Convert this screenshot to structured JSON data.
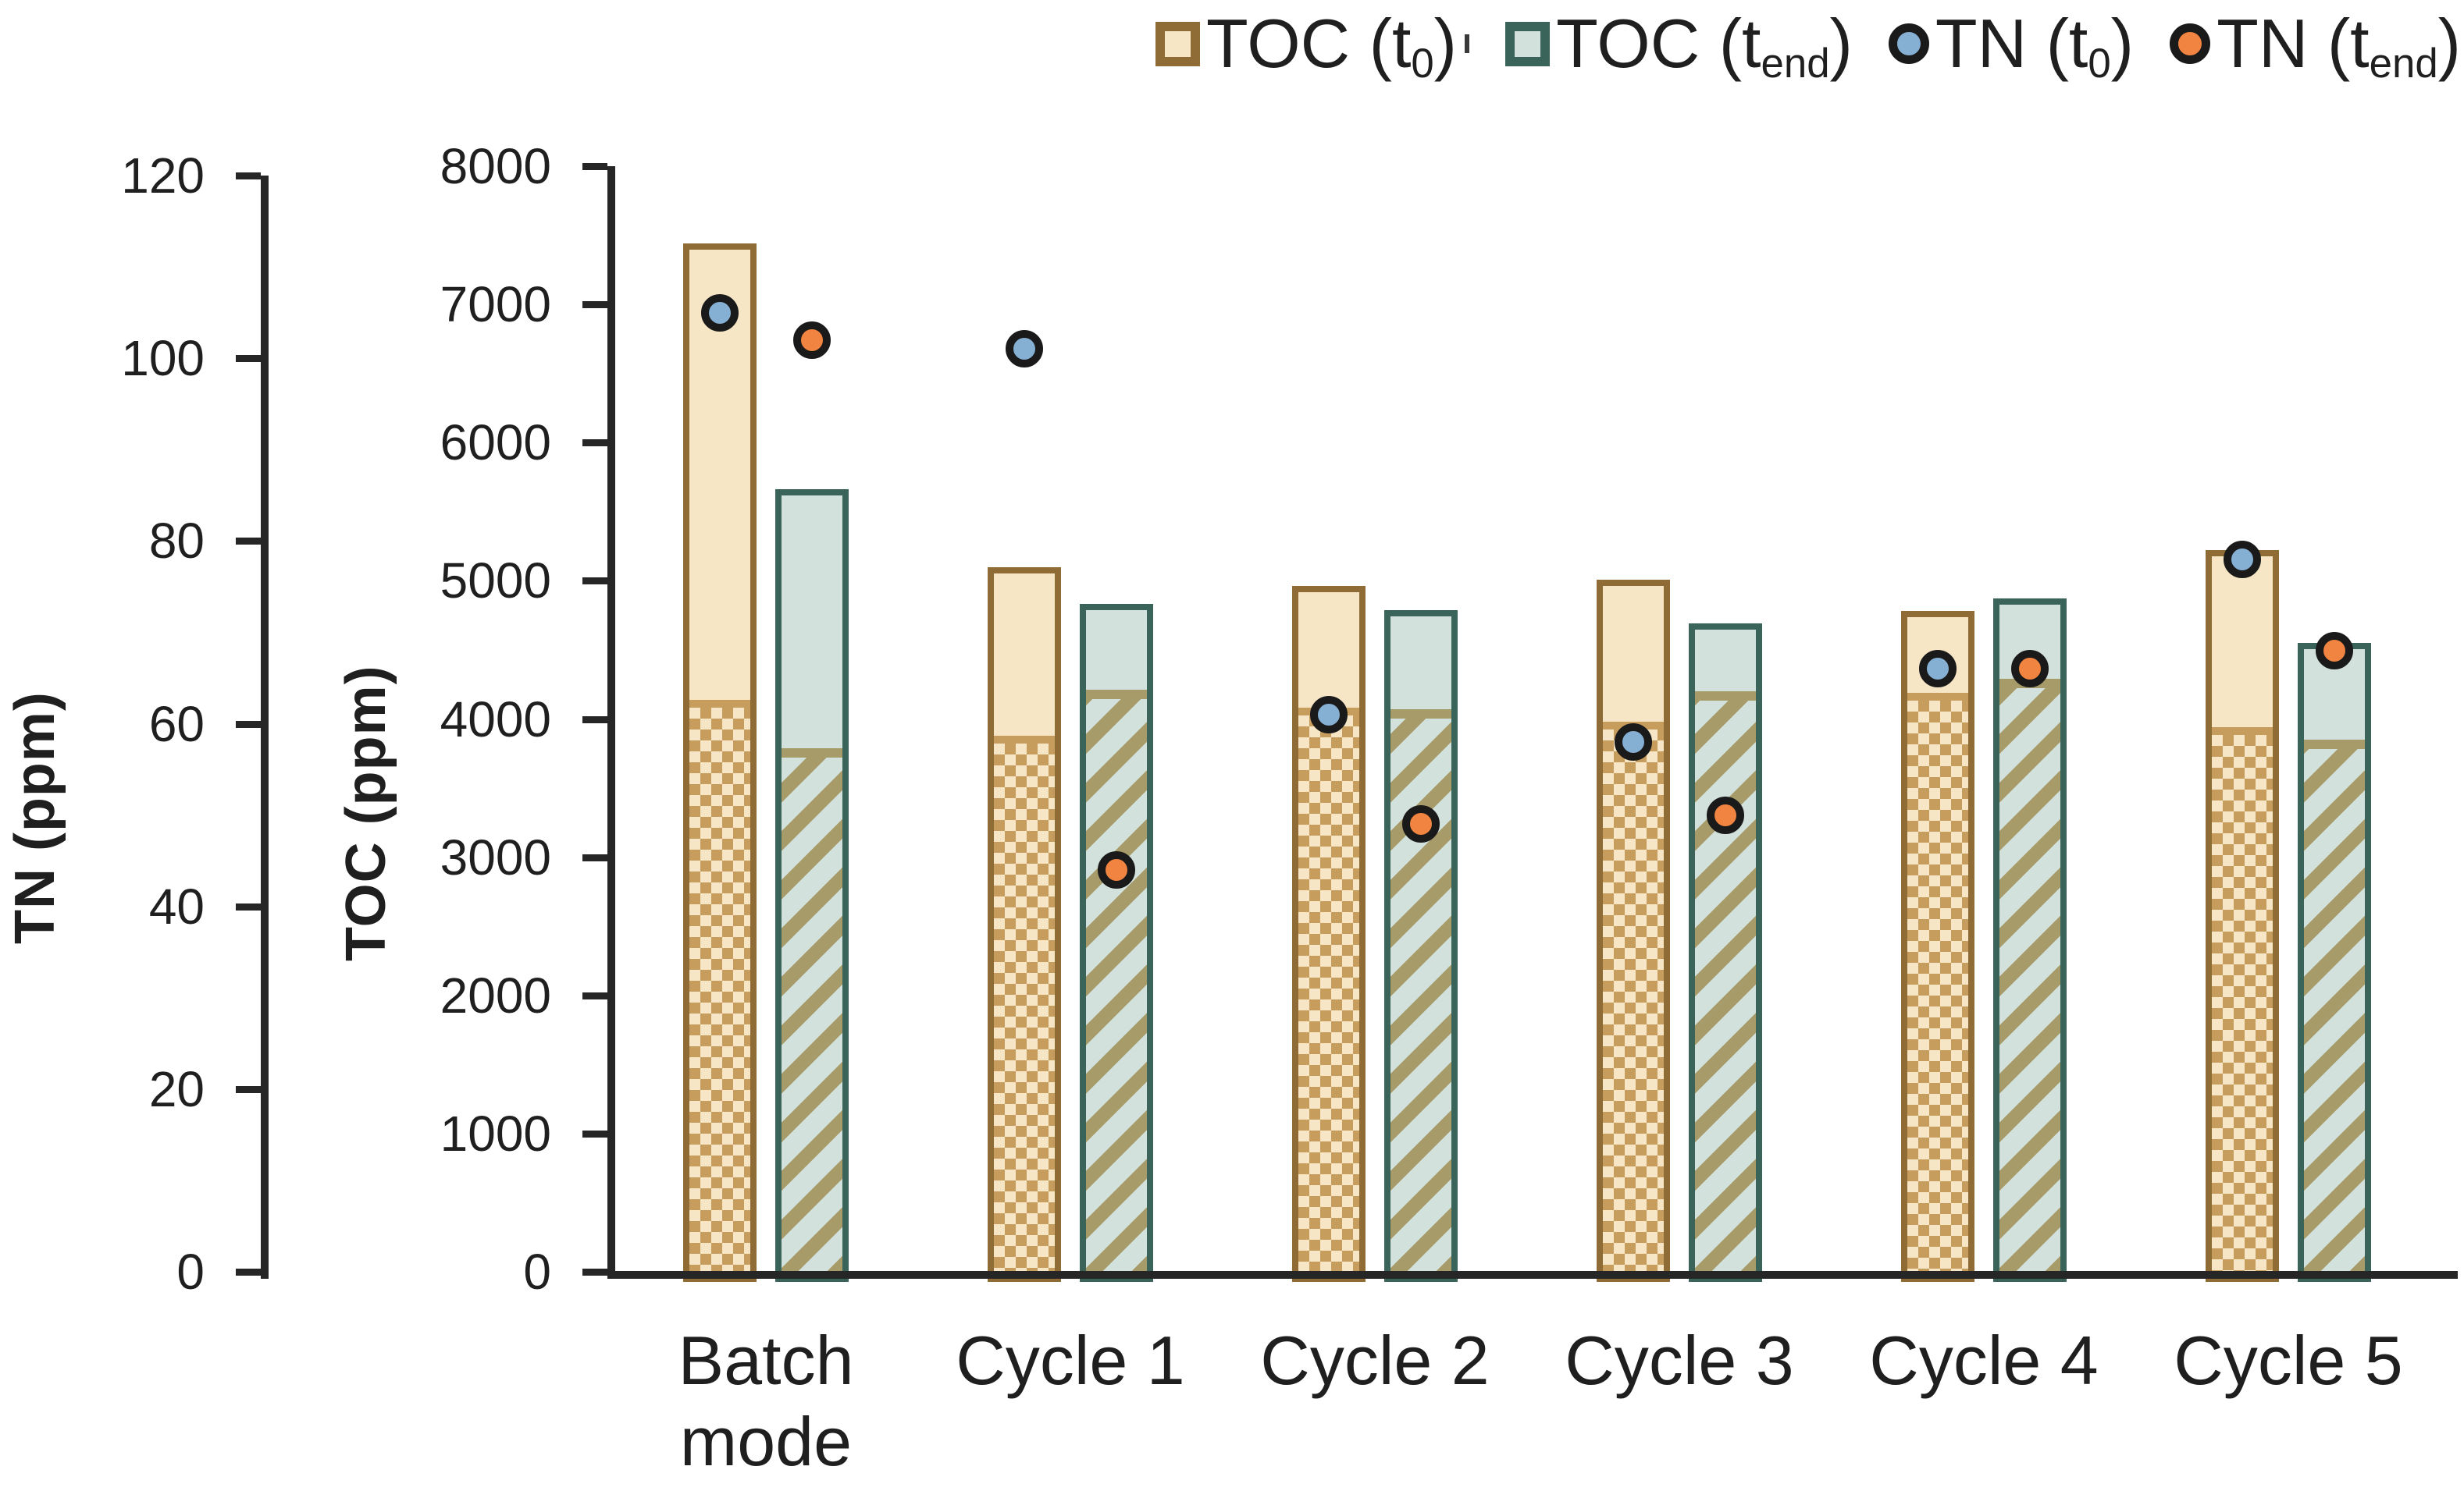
{
  "figure_title": "",
  "chart_data": {
    "type": "bar",
    "grid": "off",
    "legend_position": "top-right",
    "categories": [
      [
        "Batch",
        "mode"
      ],
      [
        "Cycle 1"
      ],
      [
        "Cycle 2"
      ],
      [
        "Cycle 3"
      ],
      [
        "Cycle 4"
      ],
      [
        "Cycle 5"
      ]
    ],
    "axes": {
      "tn": {
        "label": "TN (ppm)",
        "min": 0,
        "max": 120,
        "step": 20,
        "tick_labels": [
          "0",
          "20",
          "40",
          "60",
          "80",
          "100",
          "120"
        ]
      },
      "toc": {
        "label": "TOC (ppm)",
        "min": 0,
        "max": 8000,
        "step": 1000,
        "tick_labels": [
          "0",
          "1000",
          "2000",
          "3000",
          "4000",
          "5000",
          "6000",
          "7000",
          "8000"
        ]
      }
    },
    "series": [
      {
        "name": "TOC (t0)",
        "type": "bar",
        "axis": "toc",
        "unit": "ppm",
        "values": [
          7440,
          5100,
          4960,
          5010,
          4780,
          5220
        ],
        "hatched_values": [
          4140,
          3880,
          4080,
          3980,
          4190,
          3940
        ],
        "fill": "#F7E6C6",
        "border": "#8F6B35",
        "hatch_style": "checker"
      },
      {
        "name": "TOC (tend)",
        "type": "bar",
        "axis": "toc",
        "unit": "ppm",
        "values": [
          5660,
          4830,
          4790,
          4690,
          4870,
          4550
        ],
        "hatched_values": [
          3790,
          4210,
          4070,
          4200,
          4290,
          3850
        ],
        "fill": "#D2E1DB",
        "border": "#3A6359",
        "hatch_style": "stripes"
      },
      {
        "name": "TN (t0)",
        "type": "scatter",
        "axis": "tn",
        "unit": "ppm",
        "values": [
          105,
          101,
          61,
          58,
          66,
          78
        ],
        "fill": "#85AFD3"
      },
      {
        "name": "TN (tend)",
        "type": "scatter",
        "axis": "tn",
        "unit": "ppm",
        "values": [
          102,
          44,
          49,
          50,
          66,
          68
        ],
        "fill": "#F08440"
      }
    ],
    "legend": [
      {
        "pre": "TOC (t",
        "sub": "0",
        "post": ")",
        "marker": "tan-square"
      },
      {
        "pre": "TOC (t",
        "sub": "end",
        "post": ")",
        "marker": "teal-square"
      },
      {
        "pre": "TN (t",
        "sub": "0",
        "post": ")",
        "marker": "blue-circle"
      },
      {
        "pre": "TN (t",
        "sub": "end",
        "post": ")",
        "marker": "orange-circle"
      }
    ],
    "ylabel_left": "TN (ppm)",
    "ylabel_inner": "TOC (ppm)"
  },
  "colors": {
    "toc_t0_fill": "#F7E6C6",
    "toc_t0_border": "#8F6B35",
    "toc_t0_hatch": "#C79D5E",
    "toc_tend_fill": "#D2E1DB",
    "toc_tend_border": "#3A6359",
    "toc_tend_hatch": "#A79B69",
    "tn_t0_fill": "#85AFD3",
    "tn_tend_fill": "#F08440",
    "dot_ring": "#1A1A1A",
    "axis": "#262626",
    "text": "#1F1F1F",
    "background": "#FFFFFF"
  }
}
